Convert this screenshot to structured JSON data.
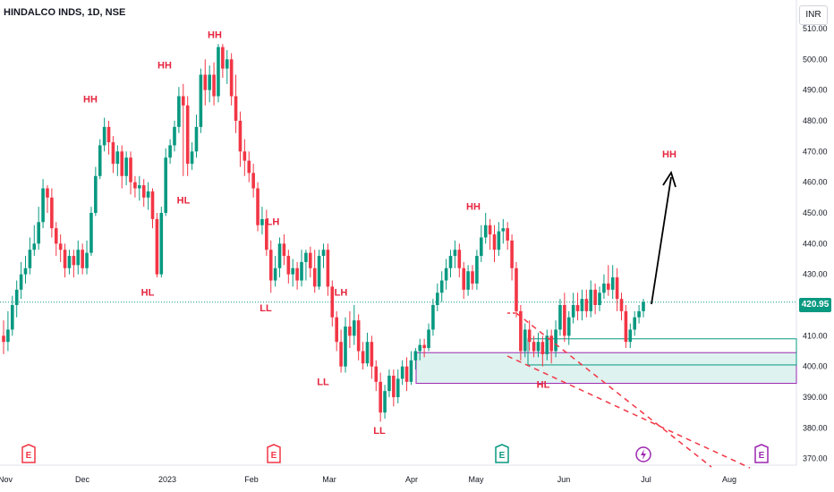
{
  "header": {
    "title": "HINDALCO INDS, 1D, NSE",
    "currency": "INR"
  },
  "last_price": "420.95",
  "colors": {
    "up": "#089981",
    "down": "#f23645",
    "annotation": "#e5253f",
    "zone": "#9c27b0",
    "zone_fill": "#d6efec",
    "arrow": "#000000"
  },
  "chart_data": {
    "type": "candlestick",
    "y_range": [
      370,
      513
    ],
    "y_ticks": [
      "510.00",
      "500.00",
      "490.00",
      "480.00",
      "470.00",
      "460.00",
      "450.00",
      "440.00",
      "430.00",
      "420.00",
      "410.00",
      "400.00",
      "390.00",
      "380.00",
      "370.00"
    ],
    "x_ticks": [
      "Nov",
      "Dec",
      "2023",
      "Feb",
      "Mar",
      "Apr",
      "May",
      "Jun",
      "Jul",
      "Aug"
    ],
    "current_price": 420.95,
    "candles": [
      [
        410,
        408,
        415,
        404
      ],
      [
        408,
        412,
        418,
        405
      ],
      [
        412,
        420,
        423,
        410
      ],
      [
        420,
        425,
        428,
        416
      ],
      [
        425,
        430,
        434,
        422
      ],
      [
        430,
        432,
        436,
        427
      ],
      [
        432,
        438,
        442,
        430
      ],
      [
        438,
        440,
        446,
        436
      ],
      [
        440,
        447,
        452,
        438
      ],
      [
        447,
        458,
        461,
        445
      ],
      [
        458,
        455,
        459,
        450
      ],
      [
        455,
        445,
        458,
        442
      ],
      [
        445,
        440,
        447,
        436
      ],
      [
        440,
        438,
        443,
        434
      ],
      [
        438,
        432,
        440,
        429
      ],
      [
        432,
        436,
        438,
        430
      ],
      [
        436,
        433,
        438,
        429
      ],
      [
        433,
        438,
        441,
        430
      ],
      [
        438,
        432,
        440,
        430
      ],
      [
        432,
        437,
        441,
        430
      ],
      [
        437,
        450,
        452,
        436
      ],
      [
        450,
        462,
        465,
        449
      ],
      [
        462,
        472,
        474,
        461
      ],
      [
        472,
        478,
        481,
        470
      ],
      [
        478,
        473,
        480,
        469
      ],
      [
        473,
        466,
        475,
        463
      ],
      [
        466,
        470,
        472,
        462
      ],
      [
        470,
        462,
        472,
        458
      ],
      [
        462,
        468,
        470,
        459
      ],
      [
        468,
        460,
        470,
        456
      ],
      [
        460,
        458,
        462,
        455
      ],
      [
        458,
        459,
        462,
        454
      ],
      [
        459,
        455,
        461,
        452
      ],
      [
        455,
        457,
        460,
        451
      ],
      [
        457,
        448,
        458,
        445
      ],
      [
        448,
        430,
        450,
        429
      ],
      [
        430,
        450,
        452,
        429
      ],
      [
        450,
        468,
        471,
        449
      ],
      [
        468,
        472,
        474,
        466
      ],
      [
        472,
        478,
        480,
        470
      ],
      [
        478,
        488,
        491,
        476
      ],
      [
        488,
        485,
        492,
        462
      ],
      [
        485,
        466,
        488,
        462
      ],
      [
        466,
        470,
        473,
        464
      ],
      [
        470,
        478,
        482,
        468
      ],
      [
        478,
        495,
        497,
        476
      ],
      [
        495,
        490,
        500,
        485
      ],
      [
        490,
        495,
        498,
        486
      ],
      [
        495,
        488,
        499,
        485
      ],
      [
        488,
        504,
        505,
        486
      ],
      [
        504,
        497,
        505,
        494
      ],
      [
        497,
        500,
        503,
        492
      ],
      [
        500,
        488,
        502,
        485
      ],
      [
        488,
        480,
        495,
        476
      ],
      [
        480,
        470,
        483,
        465
      ],
      [
        470,
        467,
        474,
        462
      ],
      [
        467,
        463,
        470,
        460
      ],
      [
        463,
        458,
        466,
        455
      ],
      [
        458,
        446,
        460,
        444
      ],
      [
        446,
        448,
        452,
        443
      ],
      [
        448,
        438,
        451,
        436
      ],
      [
        438,
        428,
        441,
        424
      ],
      [
        428,
        432,
        436,
        426
      ],
      [
        432,
        440,
        442,
        429
      ],
      [
        440,
        436,
        443,
        433
      ],
      [
        436,
        430,
        438,
        427
      ],
      [
        430,
        432,
        435,
        426
      ],
      [
        432,
        428,
        434,
        425
      ],
      [
        428,
        434,
        438,
        426
      ],
      [
        434,
        437,
        438,
        428
      ],
      [
        437,
        432,
        439,
        429
      ],
      [
        432,
        426,
        438,
        424
      ],
      [
        426,
        436,
        438,
        425
      ],
      [
        436,
        438,
        440,
        432
      ],
      [
        438,
        426,
        440,
        423
      ],
      [
        426,
        416,
        428,
        413
      ],
      [
        416,
        408,
        418,
        405
      ],
      [
        408,
        400,
        412,
        398
      ],
      [
        400,
        413,
        416,
        398
      ],
      [
        413,
        410,
        418,
        406
      ],
      [
        410,
        415,
        420,
        407
      ],
      [
        415,
        405,
        417,
        402
      ],
      [
        405,
        401,
        408,
        399
      ],
      [
        401,
        408,
        411,
        400
      ],
      [
        408,
        400,
        410,
        396
      ],
      [
        400,
        395,
        402,
        392
      ],
      [
        395,
        385,
        398,
        382
      ],
      [
        385,
        392,
        394,
        383
      ],
      [
        392,
        397,
        399,
        390
      ],
      [
        397,
        390,
        399,
        387
      ],
      [
        390,
        396,
        399,
        388
      ],
      [
        396,
        400,
        402,
        394
      ],
      [
        400,
        395,
        403,
        392
      ],
      [
        395,
        402,
        405,
        394
      ],
      [
        402,
        405,
        406,
        399
      ],
      [
        405,
        407,
        409,
        402
      ],
      [
        407,
        406,
        409,
        403
      ],
      [
        406,
        412,
        414,
        405
      ],
      [
        412,
        420,
        422,
        410
      ],
      [
        420,
        424,
        427,
        418
      ],
      [
        424,
        428,
        431,
        421
      ],
      [
        428,
        432,
        435,
        425
      ],
      [
        432,
        436,
        438,
        429
      ],
      [
        436,
        438,
        441,
        432
      ],
      [
        438,
        432,
        440,
        429
      ],
      [
        432,
        425,
        434,
        422
      ],
      [
        425,
        431,
        433,
        423
      ],
      [
        431,
        427,
        433,
        425
      ],
      [
        427,
        436,
        438,
        425
      ],
      [
        436,
        442,
        446,
        434
      ],
      [
        442,
        446,
        450,
        440
      ],
      [
        446,
        443,
        448,
        438
      ],
      [
        443,
        438,
        446,
        434
      ],
      [
        438,
        444,
        447,
        436
      ],
      [
        444,
        445,
        448,
        440
      ],
      [
        445,
        441,
        447,
        438
      ],
      [
        441,
        432,
        443,
        428
      ],
      [
        432,
        418,
        434,
        416
      ],
      [
        418,
        405,
        420,
        402
      ],
      [
        405,
        412,
        414,
        403
      ],
      [
        412,
        408,
        415,
        405
      ],
      [
        408,
        405,
        410,
        403
      ],
      [
        405,
        408,
        411,
        403
      ],
      [
        408,
        404,
        410,
        400
      ],
      [
        404,
        410,
        412,
        402
      ],
      [
        410,
        405,
        412,
        401
      ],
      [
        405,
        412,
        415,
        403
      ],
      [
        412,
        420,
        422,
        410
      ],
      [
        420,
        410,
        424,
        408
      ],
      [
        410,
        416,
        418,
        407
      ],
      [
        416,
        420,
        424,
        414
      ],
      [
        420,
        418,
        424,
        415
      ],
      [
        418,
        422,
        425,
        415
      ],
      [
        422,
        418,
        425,
        416
      ],
      [
        418,
        425,
        428,
        416
      ],
      [
        425,
        420,
        427,
        417
      ],
      [
        420,
        424,
        426,
        418
      ],
      [
        424,
        427,
        430,
        422
      ],
      [
        427,
        425,
        433,
        423
      ],
      [
        425,
        429,
        433,
        422
      ],
      [
        429,
        422,
        432,
        418
      ],
      [
        422,
        418,
        424,
        415
      ],
      [
        418,
        408,
        420,
        406
      ],
      [
        408,
        412,
        414,
        406
      ],
      [
        412,
        416,
        418,
        410
      ],
      [
        416,
        418,
        420,
        414
      ],
      [
        418,
        421,
        422,
        416
      ]
    ]
  },
  "annotations": [
    {
      "text": "HH",
      "x": 101,
      "price": 486
    },
    {
      "text": "HH",
      "x": 184,
      "price": 497
    },
    {
      "text": "HH",
      "x": 240,
      "price": 507
    },
    {
      "text": "HL",
      "x": 165,
      "price": 423
    },
    {
      "text": "HL",
      "x": 205,
      "price": 453
    },
    {
      "text": "LH",
      "x": 305,
      "price": 446
    },
    {
      "text": "LL",
      "x": 297,
      "price": 418
    },
    {
      "text": "LH",
      "x": 381,
      "price": 423
    },
    {
      "text": "LL",
      "x": 361,
      "price": 394
    },
    {
      "text": "LL",
      "x": 424,
      "price": 378
    },
    {
      "text": "HH",
      "x": 529,
      "price": 451
    },
    {
      "text": "HL",
      "x": 607,
      "price": 393
    },
    {
      "text": "HH",
      "x": 748,
      "price": 468
    }
  ],
  "events": [
    {
      "type": "E",
      "x": 32,
      "color": "#f23645"
    },
    {
      "type": "E",
      "x": 306,
      "color": "#f23645"
    },
    {
      "type": "E",
      "x": 561,
      "color": "#089981"
    },
    {
      "type": "lightning",
      "x": 719,
      "color": "#9c27b0"
    },
    {
      "type": "E",
      "x": 851,
      "color": "#9c27b0"
    }
  ]
}
